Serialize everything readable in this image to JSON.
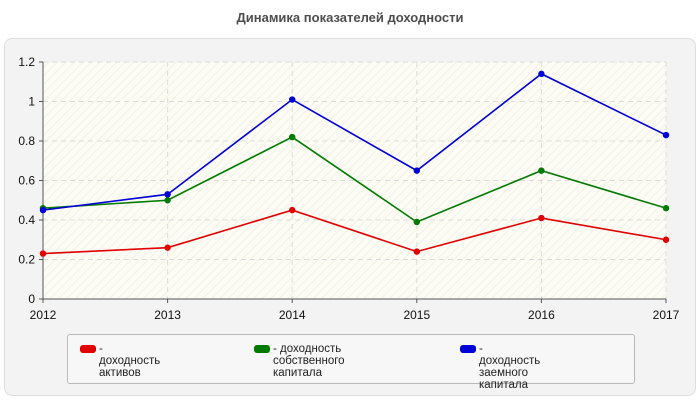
{
  "chart_data": {
    "type": "line",
    "title": "Динамика показателей доходности",
    "categories": [
      "2012",
      "2013",
      "2014",
      "2015",
      "2016",
      "2017"
    ],
    "ylim": [
      0,
      1.2
    ],
    "yticks": [
      "0",
      "0.2",
      "0.4",
      "0.6",
      "0.8",
      "1",
      "1.2"
    ],
    "grid": true,
    "legend_position": "bottom",
    "series": [
      {
        "name": "- доходность активов",
        "color": "#e00000",
        "values": [
          0.23,
          0.26,
          0.45,
          0.24,
          0.41,
          0.3
        ]
      },
      {
        "name": "- доходность собственного\nкапитала",
        "color": "#007a00",
        "values": [
          0.46,
          0.5,
          0.82,
          0.39,
          0.65,
          0.46
        ]
      },
      {
        "name": "- доходность заемного\nкапитала",
        "color": "#0000d8",
        "values": [
          0.45,
          0.53,
          1.01,
          0.65,
          1.14,
          0.83
        ]
      }
    ]
  }
}
